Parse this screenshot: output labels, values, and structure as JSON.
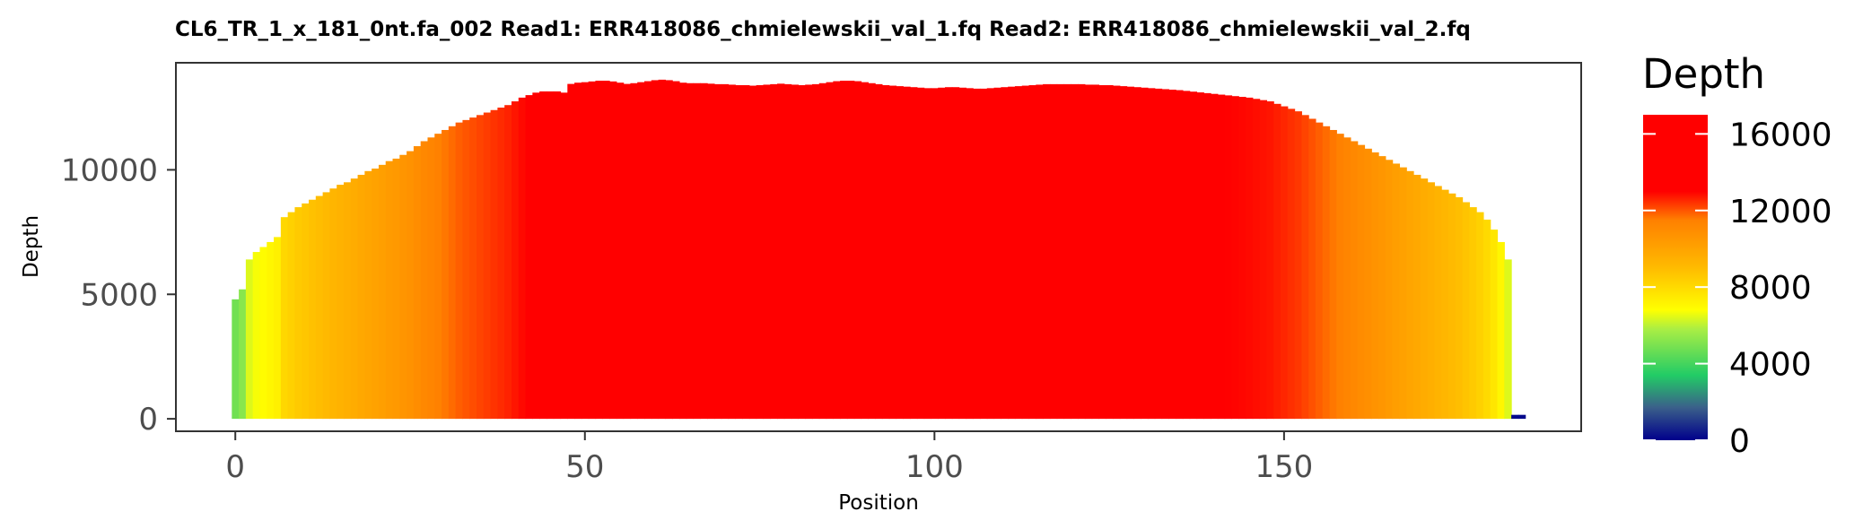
{
  "chart_data": {
    "type": "bar",
    "title": "CL6_TR_1_x_181_0nt.fa_002   Read1: ERR418086_chmielewskii_val_1.fq   Read2: ERR418086_chmielewskii_val_2.fq",
    "xlabel": "Position",
    "ylabel": "Depth",
    "xlim": [
      -8.5,
      192.5
    ],
    "ylim": [
      -500,
      14300
    ],
    "x_ticks": [
      0,
      50,
      100,
      150
    ],
    "x_tick_labels": [
      "0",
      "50",
      "100",
      "150"
    ],
    "y_ticks": [
      0,
      5000,
      10000
    ],
    "y_tick_labels": [
      "0",
      "5000",
      "10000"
    ],
    "grid": false,
    "legend": {
      "title": "Depth",
      "position": "right",
      "min": 0,
      "max": 17000,
      "ticks": [
        0,
        4000,
        8000,
        12000,
        16000
      ],
      "tick_labels": [
        "0",
        "4000",
        "8000",
        "12000",
        "16000"
      ],
      "color_stops": [
        {
          "value": 0,
          "color": "#00008b"
        },
        {
          "value": 1700,
          "color": "#3a5f8a"
        },
        {
          "value": 3400,
          "color": "#22cc66"
        },
        {
          "value": 5800,
          "color": "#aaee44"
        },
        {
          "value": 6800,
          "color": "#ffff00"
        },
        {
          "value": 9000,
          "color": "#ffbb00"
        },
        {
          "value": 11500,
          "color": "#ff8000"
        },
        {
          "value": 13000,
          "color": "#ff0000"
        },
        {
          "value": 17000,
          "color": "#ff0000"
        }
      ]
    },
    "series": [
      {
        "x_start": 0,
        "values": [
          4800,
          5200,
          6400,
          6700,
          6900,
          7100,
          7300,
          8100,
          8300,
          8500,
          8650,
          8800,
          8950,
          9100,
          9250,
          9400,
          9500,
          9650,
          9800,
          9950,
          10050,
          10200,
          10350,
          10450,
          10600,
          10750,
          10950,
          11150,
          11300,
          11450,
          11600,
          11750,
          11900,
          12000,
          12100,
          12200,
          12300,
          12400,
          12500,
          12600,
          12750,
          12900,
          13000,
          13100,
          13150,
          13150,
          13150,
          13100,
          13450,
          13500,
          13520,
          13550,
          13580,
          13580,
          13550,
          13500,
          13450,
          13480,
          13520,
          13560,
          13600,
          13620,
          13600,
          13560,
          13500,
          13480,
          13480,
          13480,
          13460,
          13440,
          13440,
          13420,
          13400,
          13400,
          13380,
          13400,
          13420,
          13440,
          13460,
          13440,
          13420,
          13400,
          13420,
          13440,
          13480,
          13520,
          13560,
          13580,
          13580,
          13560,
          13520,
          13480,
          13440,
          13400,
          13380,
          13360,
          13340,
          13320,
          13300,
          13280,
          13280,
          13300,
          13320,
          13320,
          13300,
          13280,
          13260,
          13260,
          13280,
          13300,
          13320,
          13340,
          13360,
          13380,
          13400,
          13420,
          13440,
          13440,
          13440,
          13440,
          13440,
          13440,
          13420,
          13420,
          13400,
          13400,
          13380,
          13360,
          13340,
          13320,
          13300,
          13280,
          13260,
          13240,
          13220,
          13200,
          13170,
          13140,
          13110,
          13080,
          13050,
          13020,
          12990,
          12960,
          12930,
          12900,
          12850,
          12800,
          12750,
          12650,
          12550,
          12450,
          12350,
          12200,
          12050,
          11900,
          11750,
          11600,
          11450,
          11300,
          11150,
          11000,
          10850,
          10700,
          10550,
          10400,
          10250,
          10100,
          9950,
          9800,
          9650,
          9500,
          9350,
          9200,
          9050,
          8900,
          8700,
          8500,
          8300,
          8000,
          7600,
          7100,
          6400,
          160,
          160
        ]
      }
    ]
  }
}
